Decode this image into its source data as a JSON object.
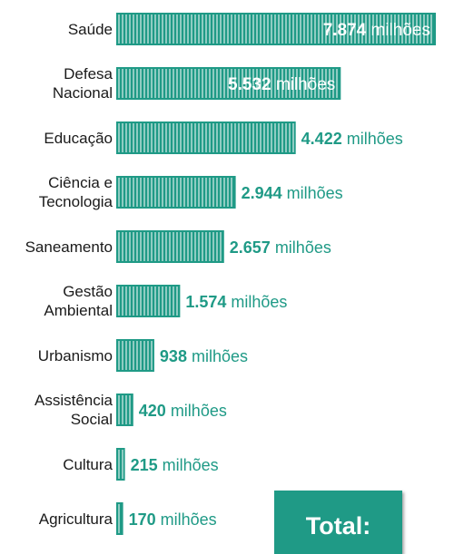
{
  "chart_data": {
    "type": "bar",
    "orientation": "horizontal",
    "categories": [
      [
        "Saúde"
      ],
      [
        "Defesa",
        "Nacional"
      ],
      [
        "Educação"
      ],
      [
        "Ciência e",
        "Tecnologia"
      ],
      [
        "Saneamento"
      ],
      [
        "Gestão",
        "Ambiental"
      ],
      [
        "Urbanismo"
      ],
      [
        "Assistência",
        "Social"
      ],
      [
        "Cultura"
      ],
      [
        "Agricultura"
      ]
    ],
    "values": [
      7874,
      5532,
      4422,
      2944,
      2657,
      1574,
      938,
      420,
      215,
      170
    ],
    "value_labels": [
      "7.874",
      "5.532",
      "4.422",
      "2.944",
      "2.657",
      "1.574",
      "938",
      "420",
      "215",
      "170"
    ],
    "unit": "milhões",
    "bar_color": "#1f9a86",
    "stripe_color": "#ffffff",
    "inside_label_color": "#ffffff",
    "outside_label_color": "#1f9a86"
  },
  "total": {
    "label": "Total:"
  }
}
